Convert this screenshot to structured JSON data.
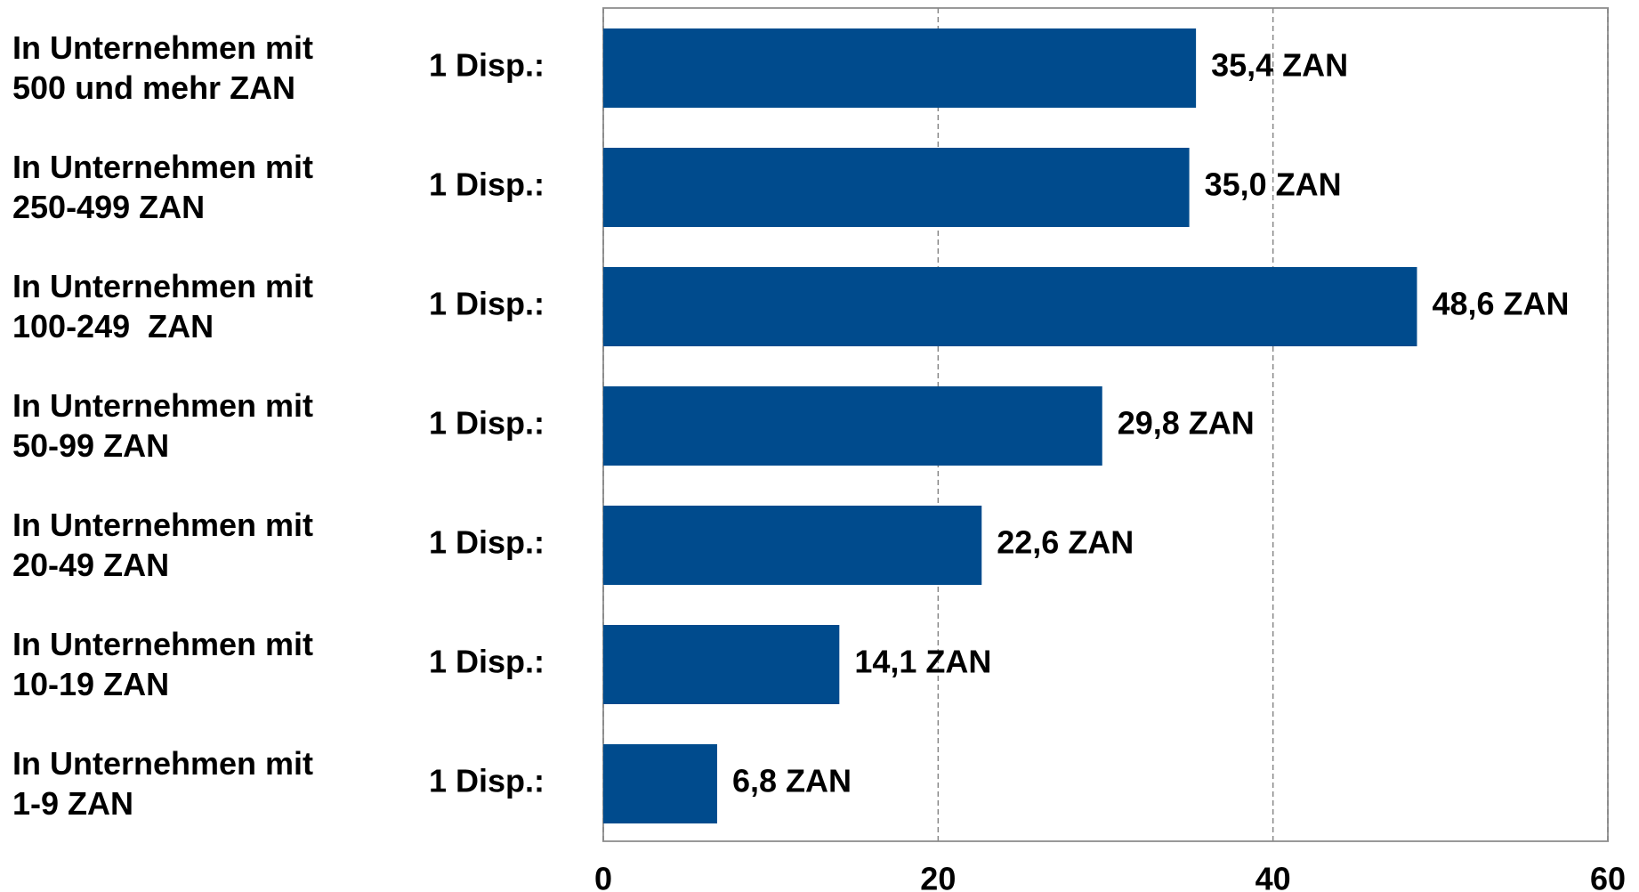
{
  "chart_data": {
    "type": "bar",
    "orientation": "horizontal",
    "categories": [
      "In Unternehmen mit\n500 und mehr ZAN",
      "In Unternehmen mit\n250-499 ZAN",
      "In Unternehmen mit\n100-249  ZAN",
      "In Unternehmen mit\n50-99 ZAN",
      "In Unternehmen mit\n20-49 ZAN",
      "In Unternehmen mit\n10-19 ZAN",
      "In Unternehmen mit\n1-9 ZAN"
    ],
    "row_labels": [
      "1 Disp.:",
      "1 Disp.:",
      "1 Disp.:",
      "1 Disp.:",
      "1 Disp.:",
      "1 Disp.:",
      "1 Disp.:"
    ],
    "values": [
      35.4,
      35.0,
      48.6,
      29.8,
      22.6,
      14.1,
      6.8
    ],
    "value_labels": [
      "35,4 ZAN",
      "35,0 ZAN",
      "48,6 ZAN",
      "29,8 ZAN",
      "22,6 ZAN",
      "14,1 ZAN",
      "6,8 ZAN"
    ],
    "color": "#004b8d",
    "xlim": [
      0,
      60
    ],
    "xticks": [
      0,
      20,
      40,
      60
    ],
    "grid": true
  }
}
